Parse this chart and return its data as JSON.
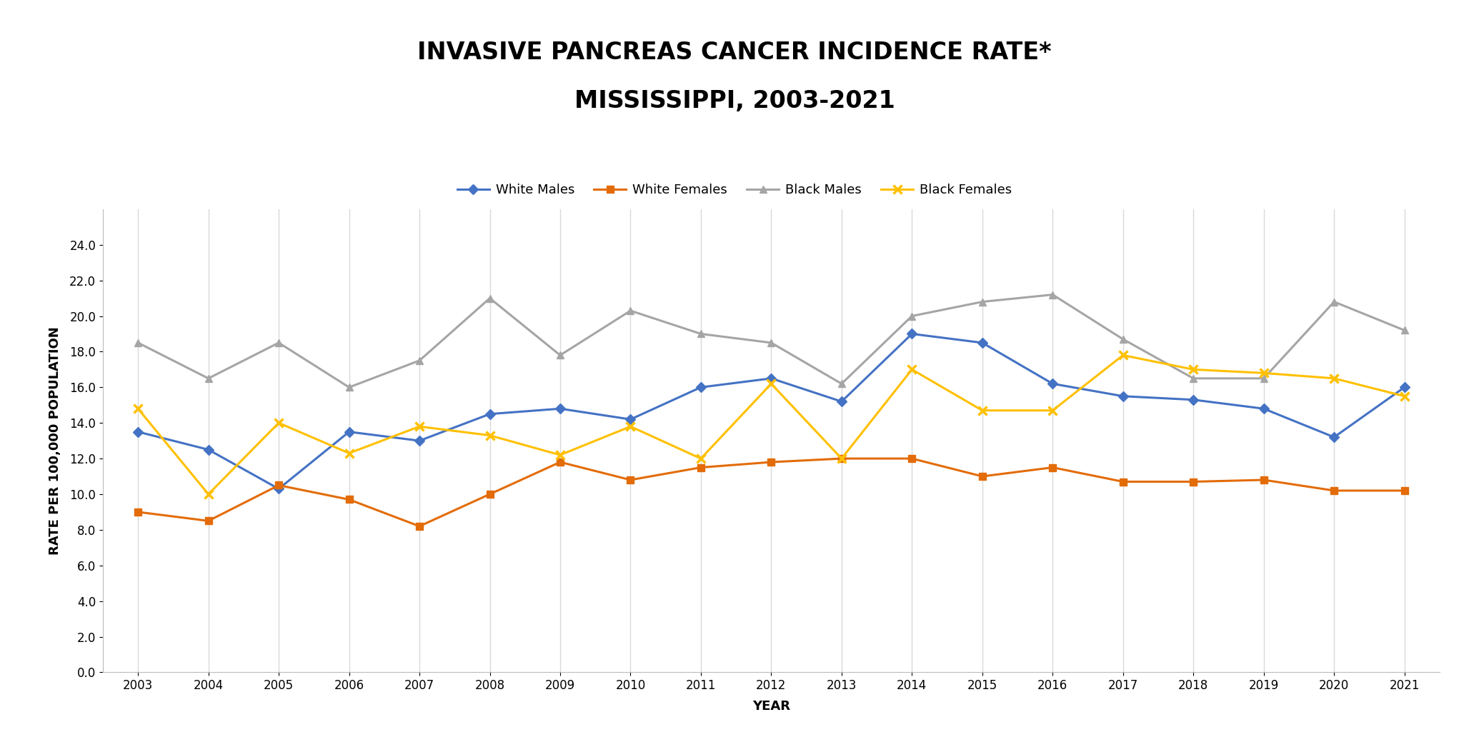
{
  "title_line1": "INVASIVE PANCREAS CANCER INCIDENCE RATE*",
  "title_line2": "MISSISSIPPI, 2003-2021",
  "xlabel": "YEAR",
  "ylabel": "RATE PER 100,000 POPULATION",
  "years": [
    2003,
    2004,
    2005,
    2006,
    2007,
    2008,
    2009,
    2010,
    2011,
    2012,
    2013,
    2014,
    2015,
    2016,
    2017,
    2018,
    2019,
    2020,
    2021
  ],
  "white_males": [
    13.5,
    12.5,
    10.3,
    13.5,
    13.0,
    14.5,
    14.8,
    14.2,
    16.0,
    16.5,
    15.2,
    19.0,
    18.5,
    16.2,
    15.5,
    15.3,
    14.8,
    13.2,
    16.0
  ],
  "white_females": [
    9.0,
    8.5,
    10.5,
    9.7,
    8.2,
    10.0,
    11.8,
    10.8,
    11.5,
    11.8,
    12.0,
    12.0,
    11.0,
    11.5,
    10.7,
    10.7,
    10.8,
    10.2,
    10.2
  ],
  "black_males": [
    18.5,
    16.5,
    18.5,
    16.0,
    17.5,
    21.0,
    17.8,
    20.3,
    19.0,
    18.5,
    16.2,
    20.0,
    20.8,
    21.2,
    18.7,
    16.5,
    16.5,
    20.8,
    19.2
  ],
  "black_females": [
    14.8,
    10.0,
    14.0,
    12.3,
    13.8,
    13.3,
    12.2,
    13.8,
    12.0,
    16.2,
    12.0,
    17.0,
    14.7,
    14.7,
    17.8,
    17.0,
    16.8,
    16.5,
    15.5
  ],
  "white_males_color": "#4472C4",
  "white_females_color": "#E36C09",
  "black_males_color": "#A5A5A5",
  "black_females_color": "#FFC000",
  "background_color": "#FFFFFF",
  "grid_color": "#D9D9D9",
  "ylim": [
    0,
    26
  ],
  "yticks": [
    0.0,
    2.0,
    4.0,
    6.0,
    8.0,
    10.0,
    12.0,
    14.0,
    16.0,
    18.0,
    20.0,
    22.0,
    24.0
  ],
  "title_fontsize": 24,
  "axis_label_fontsize": 13,
  "tick_fontsize": 12,
  "legend_fontsize": 13,
  "line_width": 2.2,
  "marker_size": 7
}
